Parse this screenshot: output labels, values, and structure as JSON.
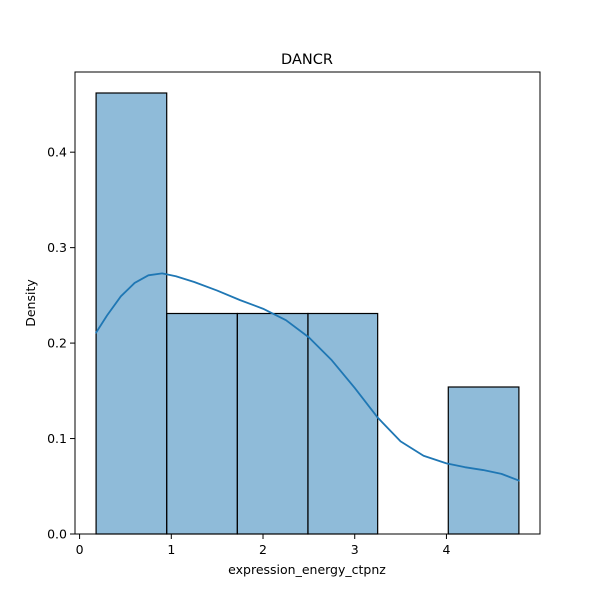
{
  "chart_data": {
    "type": "bar",
    "title": "DANCR",
    "xlabel": "expression_energy_ctpnz",
    "ylabel": "Density",
    "xlim": [
      -0.05,
      5.02
    ],
    "ylim": [
      0,
      0.484
    ],
    "x_ticks": [
      0,
      1,
      2,
      3,
      4
    ],
    "y_ticks": [
      0.0,
      0.1,
      0.2,
      0.3,
      0.4
    ],
    "grid": false,
    "bins": [
      {
        "start": 0.18,
        "end": 0.95,
        "density": 0.462
      },
      {
        "start": 0.95,
        "end": 1.72,
        "density": 0.231
      },
      {
        "start": 1.72,
        "end": 2.49,
        "density": 0.231
      },
      {
        "start": 2.49,
        "end": 3.25,
        "density": 0.231
      },
      {
        "start": 3.25,
        "end": 4.02,
        "density": 0.0
      },
      {
        "start": 4.02,
        "end": 4.79,
        "density": 0.154
      }
    ],
    "kde": {
      "x": [
        0.18,
        0.3,
        0.45,
        0.6,
        0.75,
        0.9,
        1.05,
        1.25,
        1.5,
        1.75,
        2.0,
        2.25,
        2.5,
        2.75,
        3.0,
        3.25,
        3.5,
        3.75,
        4.0,
        4.2,
        4.4,
        4.6,
        4.79
      ],
      "y": [
        0.211,
        0.229,
        0.249,
        0.263,
        0.271,
        0.273,
        0.27,
        0.264,
        0.255,
        0.245,
        0.236,
        0.224,
        0.206,
        0.182,
        0.153,
        0.122,
        0.097,
        0.082,
        0.074,
        0.07,
        0.067,
        0.063,
        0.056
      ]
    }
  }
}
